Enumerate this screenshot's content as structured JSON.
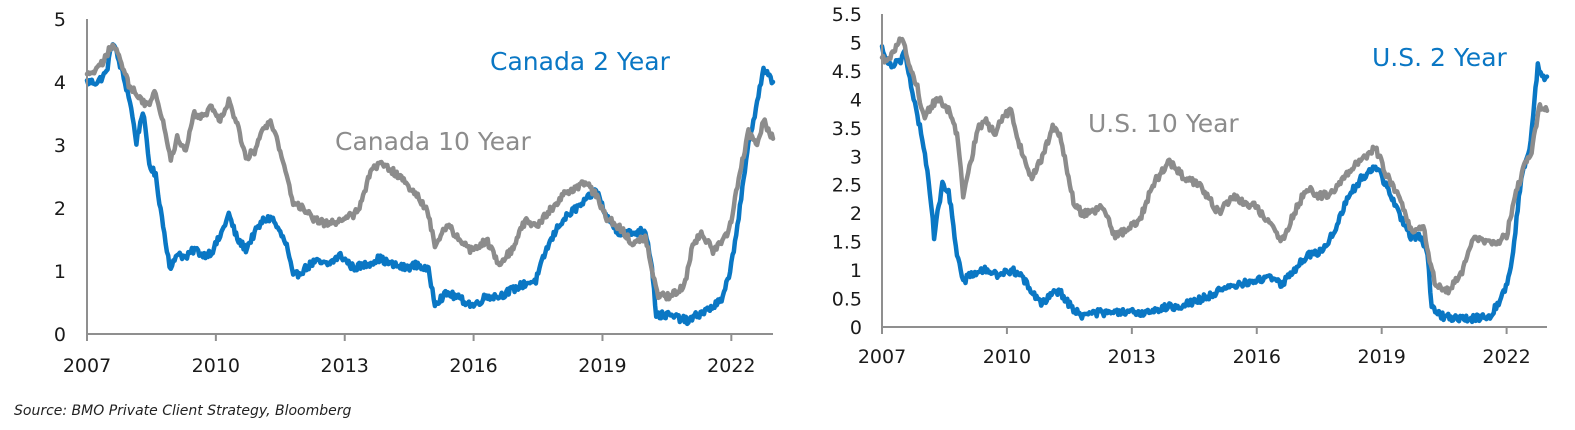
{
  "colors": {
    "two_year": "#0a77c4",
    "ten_year": "#8c8c8c",
    "axis": "#8f8f8f"
  },
  "source": "Source: BMO Private Client Strategy, Bloomberg",
  "chart_data": [
    {
      "type": "line",
      "title": "",
      "xlabel": "",
      "ylabel": "",
      "xlim": [
        2007,
        2022.97
      ],
      "ylim": [
        0,
        5
      ],
      "grid": false,
      "x_ticks": [
        "2007",
        "2010",
        "2013",
        "2016",
        "2019",
        "2022"
      ],
      "y_ticks": [
        "0",
        "1",
        "2",
        "3",
        "4",
        "5"
      ],
      "annotations": [
        "Canada 2 Year",
        "Canada 10 Year"
      ],
      "series": [
        {
          "name": "Canada 2 Year",
          "color_key": "two_year",
          "x": [
            2007.0,
            2007.25,
            2007.45,
            2007.6,
            2007.8,
            2008.0,
            2008.15,
            2008.3,
            2008.45,
            2008.6,
            2008.8,
            2008.95,
            2009.1,
            2009.3,
            2009.5,
            2009.7,
            2009.9,
            2010.1,
            2010.3,
            2010.5,
            2010.7,
            2010.9,
            2011.1,
            2011.3,
            2011.5,
            2011.65,
            2011.8,
            2012.0,
            2012.3,
            2012.6,
            2012.9,
            2013.2,
            2013.5,
            2013.8,
            2014.1,
            2014.4,
            2014.7,
            2014.95,
            2015.1,
            2015.4,
            2015.7,
            2016.0,
            2016.3,
            2016.6,
            2016.9,
            2017.2,
            2017.45,
            2017.7,
            2018.0,
            2018.3,
            2018.6,
            2018.85,
            2019.1,
            2019.4,
            2019.7,
            2020.0,
            2020.15,
            2020.25,
            2020.5,
            2020.8,
            2021.0,
            2021.2,
            2021.5,
            2021.8,
            2022.0,
            2022.2,
            2022.4,
            2022.6,
            2022.75,
            2022.97
          ],
          "values": [
            4.0,
            4.0,
            4.15,
            4.65,
            4.2,
            3.7,
            3.05,
            3.55,
            2.7,
            2.5,
            1.6,
            1.0,
            1.3,
            1.2,
            1.35,
            1.25,
            1.3,
            1.55,
            1.9,
            1.5,
            1.35,
            1.6,
            1.8,
            1.85,
            1.6,
            1.4,
            0.9,
            1.0,
            1.15,
            1.1,
            1.25,
            1.05,
            1.1,
            1.2,
            1.1,
            1.05,
            1.1,
            1.0,
            0.5,
            0.65,
            0.55,
            0.45,
            0.6,
            0.6,
            0.7,
            0.8,
            0.85,
            1.35,
            1.75,
            1.95,
            2.1,
            2.3,
            1.85,
            1.6,
            1.6,
            1.65,
            1.1,
            0.3,
            0.3,
            0.25,
            0.2,
            0.3,
            0.4,
            0.55,
            1.1,
            2.0,
            3.0,
            3.7,
            4.2,
            4.0
          ]
        },
        {
          "name": "Canada 10 Year",
          "color_key": "ten_year",
          "x": [
            2007.0,
            2007.25,
            2007.45,
            2007.6,
            2007.8,
            2008.0,
            2008.2,
            2008.4,
            2008.6,
            2008.8,
            2008.95,
            2009.1,
            2009.3,
            2009.5,
            2009.7,
            2009.9,
            2010.1,
            2010.3,
            2010.5,
            2010.7,
            2010.9,
            2011.1,
            2011.3,
            2011.5,
            2011.65,
            2011.8,
            2012.0,
            2012.3,
            2012.6,
            2012.9,
            2013.2,
            2013.4,
            2013.6,
            2013.8,
            2014.1,
            2014.4,
            2014.7,
            2014.95,
            2015.1,
            2015.4,
            2015.7,
            2016.0,
            2016.3,
            2016.6,
            2016.9,
            2017.2,
            2017.45,
            2017.7,
            2018.0,
            2018.3,
            2018.6,
            2018.85,
            2019.1,
            2019.4,
            2019.7,
            2020.0,
            2020.15,
            2020.3,
            2020.6,
            2020.9,
            2021.1,
            2021.3,
            2021.6,
            2021.9,
            2022.0,
            2022.2,
            2022.4,
            2022.6,
            2022.75,
            2022.97
          ],
          "values": [
            4.1,
            4.2,
            4.4,
            4.65,
            4.3,
            3.9,
            3.8,
            3.6,
            3.85,
            3.3,
            2.8,
            3.1,
            2.9,
            3.5,
            3.45,
            3.6,
            3.4,
            3.7,
            3.3,
            2.8,
            2.9,
            3.3,
            3.35,
            2.9,
            2.5,
            2.1,
            2.0,
            1.8,
            1.75,
            1.8,
            1.9,
            2.1,
            2.6,
            2.7,
            2.6,
            2.4,
            2.2,
            1.9,
            1.4,
            1.75,
            1.45,
            1.3,
            1.5,
            1.1,
            1.35,
            1.8,
            1.7,
            1.9,
            2.15,
            2.3,
            2.4,
            2.2,
            1.85,
            1.7,
            1.45,
            1.55,
            1.0,
            0.6,
            0.6,
            0.75,
            1.4,
            1.6,
            1.3,
            1.6,
            1.8,
            2.6,
            3.2,
            3.0,
            3.4,
            3.1
          ]
        }
      ]
    },
    {
      "type": "line",
      "title": "",
      "xlabel": "",
      "ylabel": "",
      "xlim": [
        2007,
        2022.97
      ],
      "ylim": [
        0,
        5.5
      ],
      "grid": false,
      "x_ticks": [
        "2007",
        "2010",
        "2013",
        "2016",
        "2019",
        "2022"
      ],
      "y_ticks": [
        "0",
        "0.5",
        "1",
        "1.5",
        "2",
        "2.5",
        "3",
        "3.5",
        "4",
        "4.5",
        "5",
        "5.5"
      ],
      "annotations": [
        "U.S. 2 Year",
        "U.S. 10 Year"
      ],
      "series": [
        {
          "name": "U.S. 2 Year",
          "color_key": "two_year",
          "x": [
            2007.0,
            2007.2,
            2007.45,
            2007.55,
            2007.7,
            2007.85,
            2008.0,
            2008.15,
            2008.25,
            2008.45,
            2008.6,
            2008.8,
            2008.95,
            2009.2,
            2009.5,
            2009.8,
            2010.1,
            2010.3,
            2010.6,
            2010.85,
            2011.1,
            2011.3,
            2011.6,
            2011.8,
            2012.1,
            2012.5,
            2012.9,
            2013.3,
            2013.5,
            2013.9,
            2014.3,
            2014.7,
            2015.0,
            2015.4,
            2015.8,
            2016.0,
            2016.3,
            2016.6,
            2016.9,
            2017.2,
            2017.6,
            2017.9,
            2018.2,
            2018.5,
            2018.85,
            2019.1,
            2019.4,
            2019.7,
            2019.95,
            2020.1,
            2020.2,
            2020.4,
            2020.8,
            2021.2,
            2021.6,
            2021.9,
            2022.1,
            2022.35,
            2022.55,
            2022.75,
            2022.85,
            2022.97
          ],
          "values": [
            4.9,
            4.6,
            4.7,
            4.85,
            4.2,
            3.7,
            3.2,
            2.4,
            1.6,
            2.5,
            2.4,
            1.3,
            0.8,
            0.95,
            1.0,
            0.9,
            1.0,
            0.95,
            0.6,
            0.4,
            0.65,
            0.6,
            0.3,
            0.2,
            0.25,
            0.25,
            0.25,
            0.25,
            0.3,
            0.35,
            0.4,
            0.5,
            0.6,
            0.7,
            0.8,
            0.8,
            0.9,
            0.75,
            1.0,
            1.25,
            1.35,
            1.75,
            2.3,
            2.6,
            2.85,
            2.5,
            2.0,
            1.6,
            1.6,
            1.3,
            0.35,
            0.2,
            0.15,
            0.15,
            0.2,
            0.55,
            1.0,
            2.6,
            3.1,
            4.6,
            4.4,
            4.4
          ]
        },
        {
          "name": "U.S. 10 Year",
          "color_key": "ten_year",
          "x": [
            2007.0,
            2007.2,
            2007.45,
            2007.55,
            2007.7,
            2007.85,
            2008.0,
            2008.2,
            2008.4,
            2008.6,
            2008.8,
            2008.95,
            2009.1,
            2009.3,
            2009.5,
            2009.7,
            2009.9,
            2010.1,
            2010.3,
            2010.6,
            2010.85,
            2011.1,
            2011.3,
            2011.6,
            2011.8,
            2012.0,
            2012.3,
            2012.6,
            2012.9,
            2013.2,
            2013.5,
            2013.7,
            2013.9,
            2014.3,
            2014.6,
            2014.9,
            2015.1,
            2015.4,
            2015.7,
            2016.0,
            2016.3,
            2016.6,
            2016.9,
            2017.2,
            2017.5,
            2017.8,
            2018.1,
            2018.4,
            2018.7,
            2018.85,
            2019.1,
            2019.4,
            2019.7,
            2020.0,
            2020.15,
            2020.3,
            2020.6,
            2020.9,
            2021.2,
            2021.5,
            2021.8,
            2022.0,
            2022.2,
            2022.45,
            2022.6,
            2022.8,
            2022.97
          ],
          "values": [
            4.7,
            4.75,
            5.1,
            4.9,
            4.5,
            4.2,
            3.7,
            3.9,
            4.0,
            3.8,
            3.4,
            2.3,
            2.8,
            3.5,
            3.6,
            3.4,
            3.7,
            3.8,
            3.2,
            2.6,
            3.0,
            3.5,
            3.3,
            2.2,
            2.0,
            2.0,
            2.1,
            1.6,
            1.7,
            1.9,
            2.5,
            2.7,
            2.9,
            2.6,
            2.5,
            2.2,
            2.0,
            2.3,
            2.2,
            2.1,
            1.8,
            1.5,
            2.0,
            2.45,
            2.3,
            2.35,
            2.6,
            2.9,
            3.05,
            3.15,
            2.7,
            2.3,
            1.7,
            1.8,
            1.2,
            0.7,
            0.65,
            0.9,
            1.6,
            1.5,
            1.5,
            1.6,
            2.3,
            2.9,
            3.1,
            3.9,
            3.8
          ]
        }
      ]
    }
  ]
}
